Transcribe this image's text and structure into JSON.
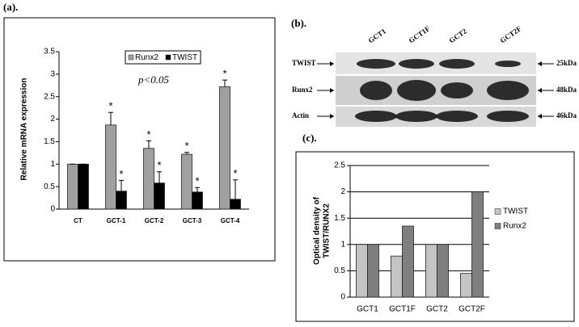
{
  "panels": [
    "(a).",
    "(b).",
    "(c)."
  ],
  "chart_data": [
    {
      "type": "bar",
      "y_label": "Relative mRNA expression",
      "annotation": "p<0.05",
      "categories": [
        "CT",
        "GCT-1",
        "GCT-2",
        "GCT-3",
        "GCT-4"
      ],
      "series": [
        {
          "name": "Runx2",
          "color": "#a0a0a0",
          "values": [
            1,
            1.87,
            1.35,
            1.22,
            2.72
          ],
          "errors": [
            0,
            0.28,
            0.17,
            0.04,
            0.15
          ],
          "markers": [
            null,
            "*",
            "*",
            "*",
            "*"
          ]
        },
        {
          "name": "TWIST",
          "color": "#000000",
          "values": [
            1,
            0.4,
            0.58,
            0.38,
            0.22
          ],
          "errors": [
            0,
            0.24,
            0.25,
            0.1,
            0.43
          ],
          "markers": [
            null,
            "*",
            "*",
            "*",
            "*"
          ]
        }
      ],
      "ylim": [
        0,
        3.5
      ],
      "yticks": [
        0,
        0.5,
        1,
        1.5,
        2,
        2.5,
        3,
        3.5
      ],
      "grid": false,
      "legend": "top"
    },
    {
      "type": "bar",
      "y_label": [
        "Optical density of",
        "TWIST/RUNX2"
      ],
      "categories": [
        "GCT1",
        "GCT1F",
        "GCT2",
        "GCT2F"
      ],
      "series": [
        {
          "name": "TWIST",
          "color": "#c4c4c4",
          "values": [
            1,
            0.78,
            1,
            0.45
          ]
        },
        {
          "name": "Runx2",
          "color": "#7f7f7f",
          "values": [
            1,
            1.35,
            1,
            2
          ]
        }
      ],
      "ylim": [
        0,
        2.5
      ],
      "yticks": [
        0,
        0.5,
        1,
        1.5,
        2,
        2.5
      ],
      "grid": true,
      "legend": "right"
    }
  ],
  "blot": {
    "lanes": [
      "GCT1",
      "GCT1F",
      "GCT2",
      "GCT2F"
    ],
    "rows": [
      "TWIST",
      "Runx2",
      "Actin"
    ],
    "sizes": [
      "25kDa",
      "48kDa",
      "46kDa"
    ]
  }
}
